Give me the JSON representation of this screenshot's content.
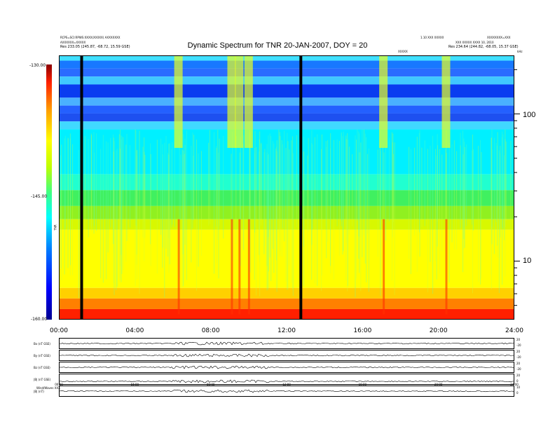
{
  "header": {
    "left_line1": "RCPS=SCI:RPWS:XXXX(XXXXX) AXXXXXXX",
    "left_line2": "AXXXXXX=XXXXX",
    "left_line3": "Res  233.05 (245.87, -68.72, 15.59 GSE)",
    "right_line1": "1.10 XXX XXXXX",
    "right_line2": "XXXXXXXX=XXX",
    "right_line3": "XXX XXXXX XXXX 10, 2010",
    "right_line4": "Res  234.64 (244.82, -68.05, 15.37 GSE)",
    "right_mid": "XXXXX",
    "right_corner": "kHz"
  },
  "chart_data": {
    "type": "heatmap",
    "title": "Dynamic Spectrum for TNR 20-JAN-2007, DOY = 20",
    "colorbar": {
      "label": "TNR",
      "ticks": [
        "-130.00",
        "-145.00",
        "-160.00"
      ],
      "range": [
        -160,
        -130
      ]
    },
    "y_axis": {
      "scale": "log",
      "ticks": [
        "100",
        "10"
      ],
      "unit": "kHz",
      "range": [
        4,
        250
      ]
    },
    "x_axis": {
      "ticks": [
        "00:00",
        "04:00",
        "08:00",
        "12:00",
        "16:00",
        "20:00",
        "24:00"
      ],
      "range": [
        0,
        24
      ]
    },
    "data_gaps_hours": [
      1.2,
      12.75
    ],
    "bursts_hours": [
      6.3,
      9.1,
      9.5,
      10.0,
      17.1,
      20.4
    ],
    "subpanels": [
      {
        "label": "Bx (nT GSE)",
        "ticks": [
          "20",
          "-20"
        ]
      },
      {
        "label": "By (nT GSE)",
        "ticks": [
          "20",
          "-20"
        ]
      },
      {
        "label": "Bz (nT GSE)",
        "ticks": [
          "20",
          "-20"
        ]
      },
      {
        "label": "|B| (nT GSE)",
        "ticks": [
          "20",
          "0"
        ]
      },
      {
        "label": "|B| (nT)",
        "ticks": [
          "10",
          "0"
        ]
      }
    ],
    "subpanel_x_ticks": [
      "00:00",
      "04:00",
      "08:00",
      "12:00",
      "16:00",
      "20:00",
      "24:00"
    ]
  },
  "footer": {
    "left": "Wind/Waves  XXX"
  }
}
